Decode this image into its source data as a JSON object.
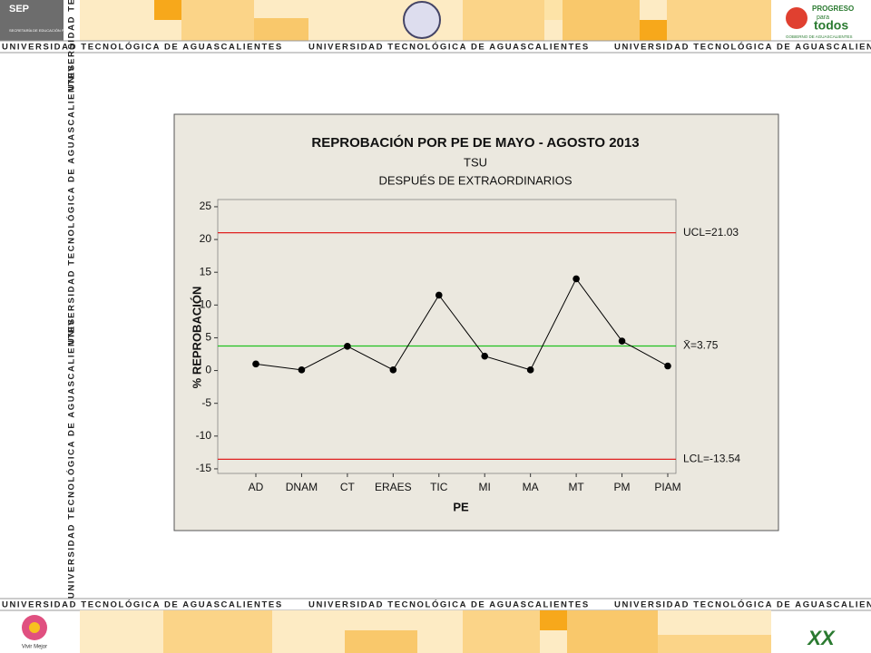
{
  "header": {
    "left_logo": "SEP",
    "left_logo_sub": "SECRETARÍA DE EDUCACIÓN PÚBLICA",
    "stripe": "UNIVERSIDAD TECNOLÓGICA DE AGUASCALIENTES",
    "right_logo": [
      "PROGRESO",
      "para",
      "todos"
    ],
    "right_logo_sub": "GOBIERNO DE AGUASCALIENTES"
  },
  "footer": {
    "left_logo": "Vivir Mejor",
    "right_logo": "XX"
  },
  "chart_data": {
    "type": "line",
    "title": "REPROBACIÓN POR PE DE MAYO - AGOSTO 2013",
    "subtitles": [
      "TSU",
      "DESPUÉS DE EXTRAORDINARIOS"
    ],
    "xlabel": "PE",
    "ylabel": "% REPROBACIÓN",
    "categories": [
      "AD",
      "DNAM",
      "CT",
      "ERAES",
      "TIC",
      "MI",
      "MA",
      "MT",
      "PM",
      "PIAM"
    ],
    "series": [
      {
        "color": "#000000",
        "values": [
          1.0,
          0.1,
          3.7,
          0.1,
          11.5,
          2.2,
          0.1,
          14.0,
          4.5,
          0.7
        ]
      }
    ],
    "control_lines": [
      {
        "value": 21.03,
        "label": "UCL=21.03",
        "color": "#e02020"
      },
      {
        "value": 3.75,
        "label": "X̄=3.75",
        "color": "#20c020"
      },
      {
        "value": -13.54,
        "label": "LCL=-13.54",
        "color": "#e02020"
      }
    ],
    "ylim": [
      -15.7,
      26.1
    ],
    "yticks": [
      -15,
      -10,
      -5,
      0,
      5,
      10,
      15,
      20,
      25
    ]
  }
}
